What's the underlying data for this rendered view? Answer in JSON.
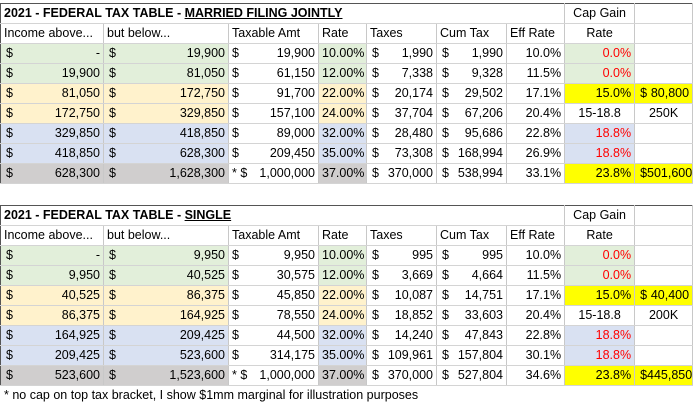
{
  "tables": [
    {
      "title_prefix": "2021 - FEDERAL TAX TABLE - ",
      "title_status": "MARRIED FILING JOINTLY",
      "cap_gain_header": "Cap Gain",
      "headers": [
        "Income above...",
        "but below...",
        "Taxable Amt",
        "Rate",
        "Taxes",
        "Cum Tax",
        "Eff Rate",
        "Rate"
      ],
      "rows": [
        {
          "above": "-",
          "below": "19,900",
          "star": "",
          "taxable": "19,900",
          "rate": "10.00%",
          "taxes": "1,990",
          "cum": "1,990",
          "eff": "10.0%",
          "cg": "0.0%",
          "cg_style": "red",
          "extra": "",
          "extra_style": ""
        },
        {
          "above": "19,900",
          "below": "81,050",
          "star": "",
          "taxable": "61,150",
          "rate": "12.00%",
          "taxes": "7,338",
          "cum": "9,328",
          "eff": "11.5%",
          "cg": "0.0%",
          "cg_style": "red",
          "extra": "",
          "extra_style": ""
        },
        {
          "above": "81,050",
          "below": "172,750",
          "star": "",
          "taxable": "91,700",
          "rate": "22.00%",
          "taxes": "20,174",
          "cum": "29,502",
          "eff": "17.1%",
          "cg": "15.0%",
          "cg_style": "yellow",
          "extra": "80,800",
          "extra_style": "yellow-money"
        },
        {
          "above": "172,750",
          "below": "329,850",
          "star": "",
          "taxable": "157,100",
          "rate": "24.00%",
          "taxes": "37,704",
          "cum": "67,206",
          "eff": "20.4%",
          "cg": "15-18.8",
          "cg_style": "center",
          "extra": "250K",
          "extra_style": "center"
        },
        {
          "above": "329,850",
          "below": "418,850",
          "star": "",
          "taxable": "89,000",
          "rate": "32.00%",
          "taxes": "28,480",
          "cum": "95,686",
          "eff": "22.8%",
          "cg": "18.8%",
          "cg_style": "red",
          "extra": "",
          "extra_style": ""
        },
        {
          "above": "418,850",
          "below": "628,300",
          "star": "",
          "taxable": "209,450",
          "rate": "35.00%",
          "taxes": "73,308",
          "cum": "168,994",
          "eff": "26.9%",
          "cg": "18.8%",
          "cg_style": "red",
          "extra": "",
          "extra_style": ""
        },
        {
          "above": "628,300",
          "below": "1,628,300",
          "star": "*",
          "taxable": "1,000,000",
          "rate": "37.00%",
          "taxes": "370,000",
          "cum": "538,994",
          "eff": "33.1%",
          "cg": "23.8%",
          "cg_style": "yellow",
          "extra": "501,600",
          "extra_style": "yellow-money"
        }
      ]
    },
    {
      "title_prefix": "2021 - FEDERAL TAX TABLE - ",
      "title_status": "SINGLE",
      "cap_gain_header": "Cap Gain",
      "headers": [
        "Income above...",
        "but below...",
        "Taxable Amt",
        "Rate",
        "Taxes",
        "Cum Tax",
        "Eff Rate",
        "Rate"
      ],
      "rows": [
        {
          "above": "-",
          "below": "9,950",
          "star": "",
          "taxable": "9,950",
          "rate": "10.00%",
          "taxes": "995",
          "cum": "995",
          "eff": "10.0%",
          "cg": "0.0%",
          "cg_style": "red",
          "extra": "",
          "extra_style": ""
        },
        {
          "above": "9,950",
          "below": "40,525",
          "star": "",
          "taxable": "30,575",
          "rate": "12.00%",
          "taxes": "3,669",
          "cum": "4,664",
          "eff": "11.5%",
          "cg": "0.0%",
          "cg_style": "red",
          "extra": "",
          "extra_style": ""
        },
        {
          "above": "40,525",
          "below": "86,375",
          "star": "",
          "taxable": "45,850",
          "rate": "22.00%",
          "taxes": "10,087",
          "cum": "14,751",
          "eff": "17.1%",
          "cg": "15.0%",
          "cg_style": "yellow",
          "extra": "40,400",
          "extra_style": "yellow-money"
        },
        {
          "above": "86,375",
          "below": "164,925",
          "star": "",
          "taxable": "78,550",
          "rate": "24.00%",
          "taxes": "18,852",
          "cum": "33,603",
          "eff": "20.4%",
          "cg": "15-18.8",
          "cg_style": "center",
          "extra": "200K",
          "extra_style": "center"
        },
        {
          "above": "164,925",
          "below": "209,425",
          "star": "",
          "taxable": "44,500",
          "rate": "32.00%",
          "taxes": "14,240",
          "cum": "47,843",
          "eff": "22.8%",
          "cg": "18.8%",
          "cg_style": "red",
          "extra": "",
          "extra_style": ""
        },
        {
          "above": "209,425",
          "below": "523,600",
          "star": "",
          "taxable": "314,175",
          "rate": "35.00%",
          "taxes": "109,961",
          "cum": "157,804",
          "eff": "30.1%",
          "cg": "18.8%",
          "cg_style": "red",
          "extra": "",
          "extra_style": ""
        },
        {
          "above": "523,600",
          "below": "1,523,600",
          "star": "*",
          "taxable": "1,000,000",
          "rate": "37.00%",
          "taxes": "370,000",
          "cum": "527,804",
          "eff": "34.6%",
          "cg": "23.8%",
          "cg_style": "yellow",
          "extra": "445,850",
          "extra_style": "yellow-money"
        }
      ]
    }
  ],
  "currency_symbol": "$",
  "row_bands": [
    "green",
    "green",
    "orange",
    "orange",
    "blue",
    "blue",
    "gray"
  ],
  "colors": {
    "green": "#e2efda",
    "orange": "#fff2cc",
    "blue": "#d9e1f2",
    "gray": "#d0cece",
    "yellow": "#ffff00",
    "red": "#ff0000"
  },
  "footnote": "* no cap on top tax bracket, I show $1mm marginal for illustration purposes"
}
